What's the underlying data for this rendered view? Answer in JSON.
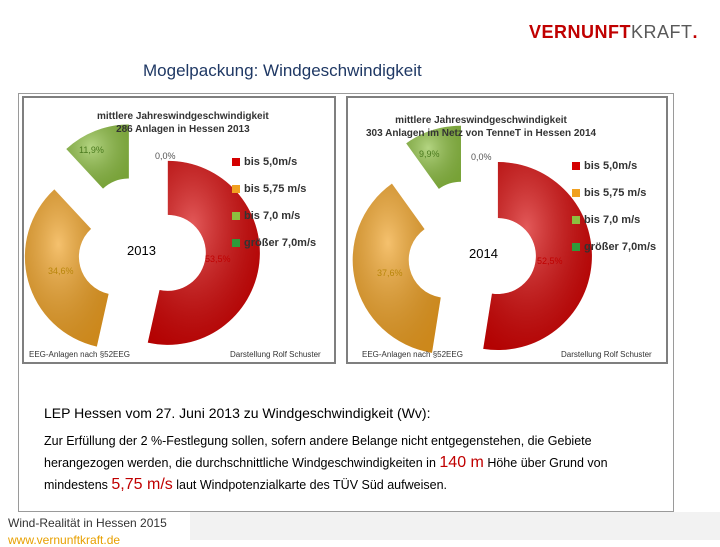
{
  "brand": {
    "part1": "VERNUNFT",
    "part2": "KRAFT",
    "dot": "."
  },
  "slide": {
    "title": "Mogelpackung: Windgeschwindigkeit"
  },
  "colors": {
    "red": "#d40000",
    "orange": "#f0a020",
    "green": "#8cbf3f",
    "darkgreen": "#2e9a3a"
  },
  "chart_data": [
    {
      "type": "pie",
      "title_line1": "mittlere Jahreswindgeschwindigkeit",
      "title_line2": "286 Anlagen  in Hessen  2013",
      "year_label": "2013",
      "categories": [
        "bis 5,0m/s",
        "bis 5,75 m/s",
        "bis 7,0 m/s",
        "größer 7,0m/s"
      ],
      "values": [
        53.5,
        34.6,
        11.9,
        0.0
      ],
      "value_labels": [
        "53,5%",
        "34,6%",
        "11,9%",
        "0,0%"
      ],
      "source_left": "EEG-Anlagen nach §52EEG",
      "source_right": "Darstellung Rolf Schuster"
    },
    {
      "type": "pie",
      "title_line1": "mittlere Jahreswindgeschwindigkeit",
      "title_line2": "303 Anlagen im Netz von TenneT in Hessen  2014",
      "year_label": "2014",
      "categories": [
        "bis 5,0m/s",
        "bis 5,75 m/s",
        "bis 7,0 m/s",
        "größer 7,0m/s"
      ],
      "values": [
        52.5,
        37.6,
        9.9,
        0.0
      ],
      "value_labels": [
        "52,5%",
        "37,6%",
        "9,9%",
        "0,0%"
      ],
      "source_left": "EEG-Anlagen nach §52EEG",
      "source_right": "Darstellung Rolf Schuster"
    }
  ],
  "textbox": {
    "heading": "LEP Hessen vom 27. Juni 2013 zu Windgeschwindigkeit (Wv):",
    "line1": "Zur Erfüllung der 2 %-Festlegung sollen, sofern andere Belange nicht entgegenstehen, die Gebiete",
    "line2a": "herangezogen werden, die durchschnittliche Windgeschwindigkeiten in ",
    "line2_hl": "140 m",
    "line2b": " Höhe über Grund von",
    "line3a": "mindestens ",
    "line3_hl": "5,75 m/s",
    "line3b": " laut Windpotenzialkarte des TÜV Süd aufweisen."
  },
  "footer": {
    "text": "Wind-Realität in Hessen 2015",
    "url": "www.vernunftkraft.de"
  }
}
